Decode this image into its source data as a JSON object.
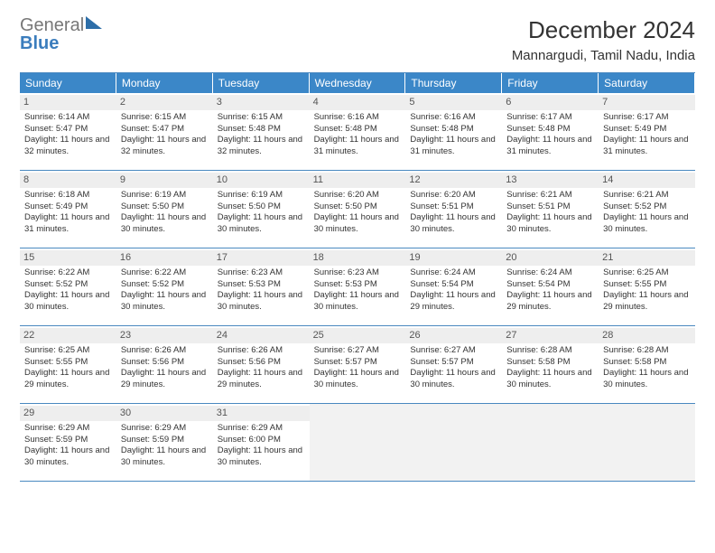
{
  "logo": {
    "text_gray": "General",
    "text_blue": "Blue"
  },
  "title": "December 2024",
  "location": "Mannargudi, Tamil Nadu, India",
  "colors": {
    "header_bg": "#3b87c8",
    "border": "#4a89c0",
    "daynum_bg": "#eeeeee",
    "empty_bg": "#f2f2f2"
  },
  "daysOfWeek": [
    "Sunday",
    "Monday",
    "Tuesday",
    "Wednesday",
    "Thursday",
    "Friday",
    "Saturday"
  ],
  "days": [
    {
      "n": 1,
      "rise": "6:14 AM",
      "set": "5:47 PM",
      "dl": "11 hours and 32 minutes."
    },
    {
      "n": 2,
      "rise": "6:15 AM",
      "set": "5:47 PM",
      "dl": "11 hours and 32 minutes."
    },
    {
      "n": 3,
      "rise": "6:15 AM",
      "set": "5:48 PM",
      "dl": "11 hours and 32 minutes."
    },
    {
      "n": 4,
      "rise": "6:16 AM",
      "set": "5:48 PM",
      "dl": "11 hours and 31 minutes."
    },
    {
      "n": 5,
      "rise": "6:16 AM",
      "set": "5:48 PM",
      "dl": "11 hours and 31 minutes."
    },
    {
      "n": 6,
      "rise": "6:17 AM",
      "set": "5:48 PM",
      "dl": "11 hours and 31 minutes."
    },
    {
      "n": 7,
      "rise": "6:17 AM",
      "set": "5:49 PM",
      "dl": "11 hours and 31 minutes."
    },
    {
      "n": 8,
      "rise": "6:18 AM",
      "set": "5:49 PM",
      "dl": "11 hours and 31 minutes."
    },
    {
      "n": 9,
      "rise": "6:19 AM",
      "set": "5:50 PM",
      "dl": "11 hours and 30 minutes."
    },
    {
      "n": 10,
      "rise": "6:19 AM",
      "set": "5:50 PM",
      "dl": "11 hours and 30 minutes."
    },
    {
      "n": 11,
      "rise": "6:20 AM",
      "set": "5:50 PM",
      "dl": "11 hours and 30 minutes."
    },
    {
      "n": 12,
      "rise": "6:20 AM",
      "set": "5:51 PM",
      "dl": "11 hours and 30 minutes."
    },
    {
      "n": 13,
      "rise": "6:21 AM",
      "set": "5:51 PM",
      "dl": "11 hours and 30 minutes."
    },
    {
      "n": 14,
      "rise": "6:21 AM",
      "set": "5:52 PM",
      "dl": "11 hours and 30 minutes."
    },
    {
      "n": 15,
      "rise": "6:22 AM",
      "set": "5:52 PM",
      "dl": "11 hours and 30 minutes."
    },
    {
      "n": 16,
      "rise": "6:22 AM",
      "set": "5:52 PM",
      "dl": "11 hours and 30 minutes."
    },
    {
      "n": 17,
      "rise": "6:23 AM",
      "set": "5:53 PM",
      "dl": "11 hours and 30 minutes."
    },
    {
      "n": 18,
      "rise": "6:23 AM",
      "set": "5:53 PM",
      "dl": "11 hours and 30 minutes."
    },
    {
      "n": 19,
      "rise": "6:24 AM",
      "set": "5:54 PM",
      "dl": "11 hours and 29 minutes."
    },
    {
      "n": 20,
      "rise": "6:24 AM",
      "set": "5:54 PM",
      "dl": "11 hours and 29 minutes."
    },
    {
      "n": 21,
      "rise": "6:25 AM",
      "set": "5:55 PM",
      "dl": "11 hours and 29 minutes."
    },
    {
      "n": 22,
      "rise": "6:25 AM",
      "set": "5:55 PM",
      "dl": "11 hours and 29 minutes."
    },
    {
      "n": 23,
      "rise": "6:26 AM",
      "set": "5:56 PM",
      "dl": "11 hours and 29 minutes."
    },
    {
      "n": 24,
      "rise": "6:26 AM",
      "set": "5:56 PM",
      "dl": "11 hours and 29 minutes."
    },
    {
      "n": 25,
      "rise": "6:27 AM",
      "set": "5:57 PM",
      "dl": "11 hours and 30 minutes."
    },
    {
      "n": 26,
      "rise": "6:27 AM",
      "set": "5:57 PM",
      "dl": "11 hours and 30 minutes."
    },
    {
      "n": 27,
      "rise": "6:28 AM",
      "set": "5:58 PM",
      "dl": "11 hours and 30 minutes."
    },
    {
      "n": 28,
      "rise": "6:28 AM",
      "set": "5:58 PM",
      "dl": "11 hours and 30 minutes."
    },
    {
      "n": 29,
      "rise": "6:29 AM",
      "set": "5:59 PM",
      "dl": "11 hours and 30 minutes."
    },
    {
      "n": 30,
      "rise": "6:29 AM",
      "set": "5:59 PM",
      "dl": "11 hours and 30 minutes."
    },
    {
      "n": 31,
      "rise": "6:29 AM",
      "set": "6:00 PM",
      "dl": "11 hours and 30 minutes."
    }
  ],
  "labels": {
    "sunrise": "Sunrise:",
    "sunset": "Sunset:",
    "daylight": "Daylight:"
  },
  "grid": {
    "startOffset": 0,
    "totalCells": 35
  }
}
